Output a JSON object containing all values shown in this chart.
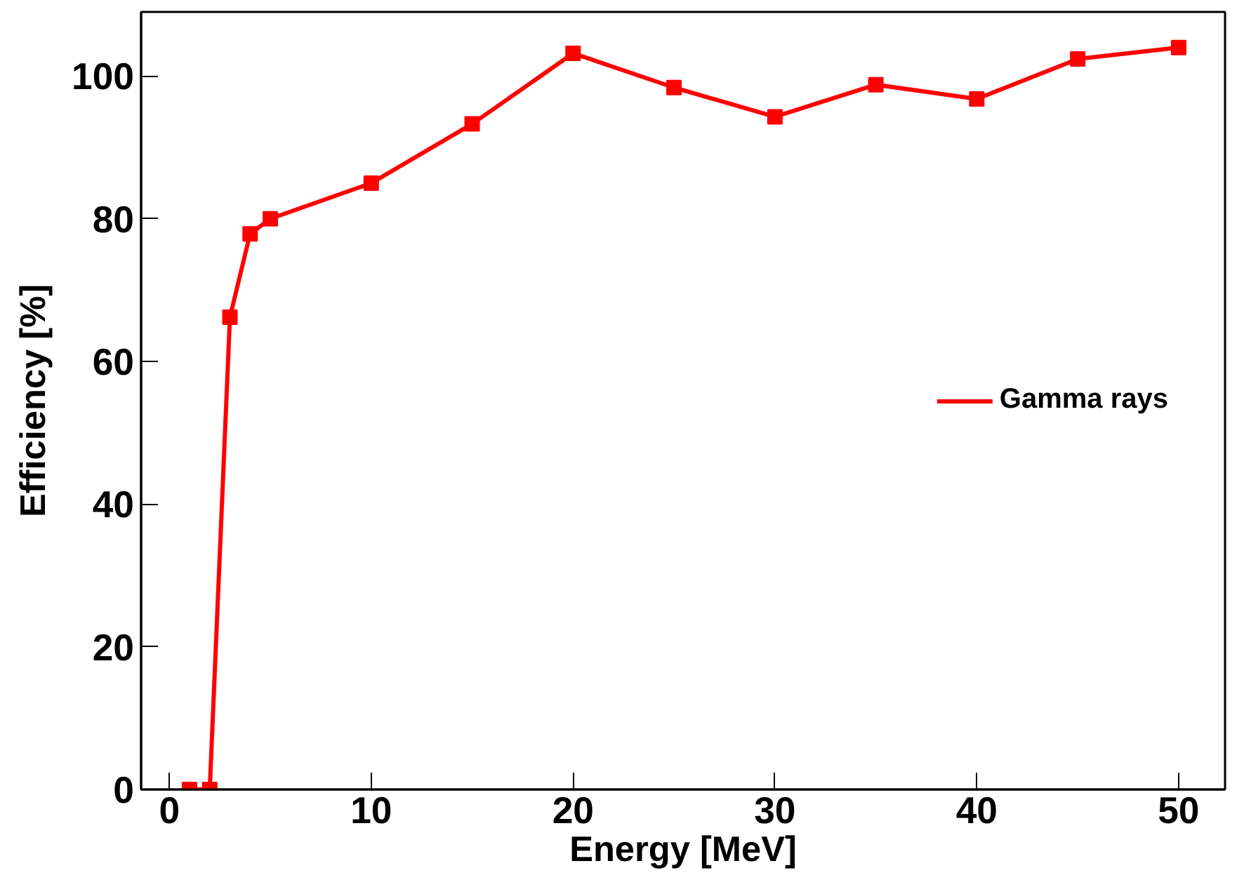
{
  "chart_data": {
    "type": "line",
    "xlabel": "Energy [MeV]",
    "ylabel": "Efficiency [%]",
    "x": [
      1,
      2,
      3,
      4,
      5,
      10,
      15,
      20,
      25,
      30,
      35,
      40,
      45,
      50
    ],
    "series": [
      {
        "name": "Gamma rays",
        "color": "#ff0000",
        "values": [
          0,
          0,
          66.2,
          77.9,
          80,
          85,
          93.3,
          103.2,
          98.4,
          94.3,
          98.8,
          96.8,
          102.4,
          104
        ]
      }
    ],
    "xlim": [
      -1.4,
      52.3
    ],
    "ylim": [
      0,
      109
    ],
    "xticks": [
      0,
      10,
      20,
      30,
      40,
      50
    ],
    "yticks": [
      0,
      20,
      40,
      60,
      80,
      100
    ],
    "grid": false,
    "legend": "right",
    "marker": "square",
    "line_style": "solid"
  }
}
